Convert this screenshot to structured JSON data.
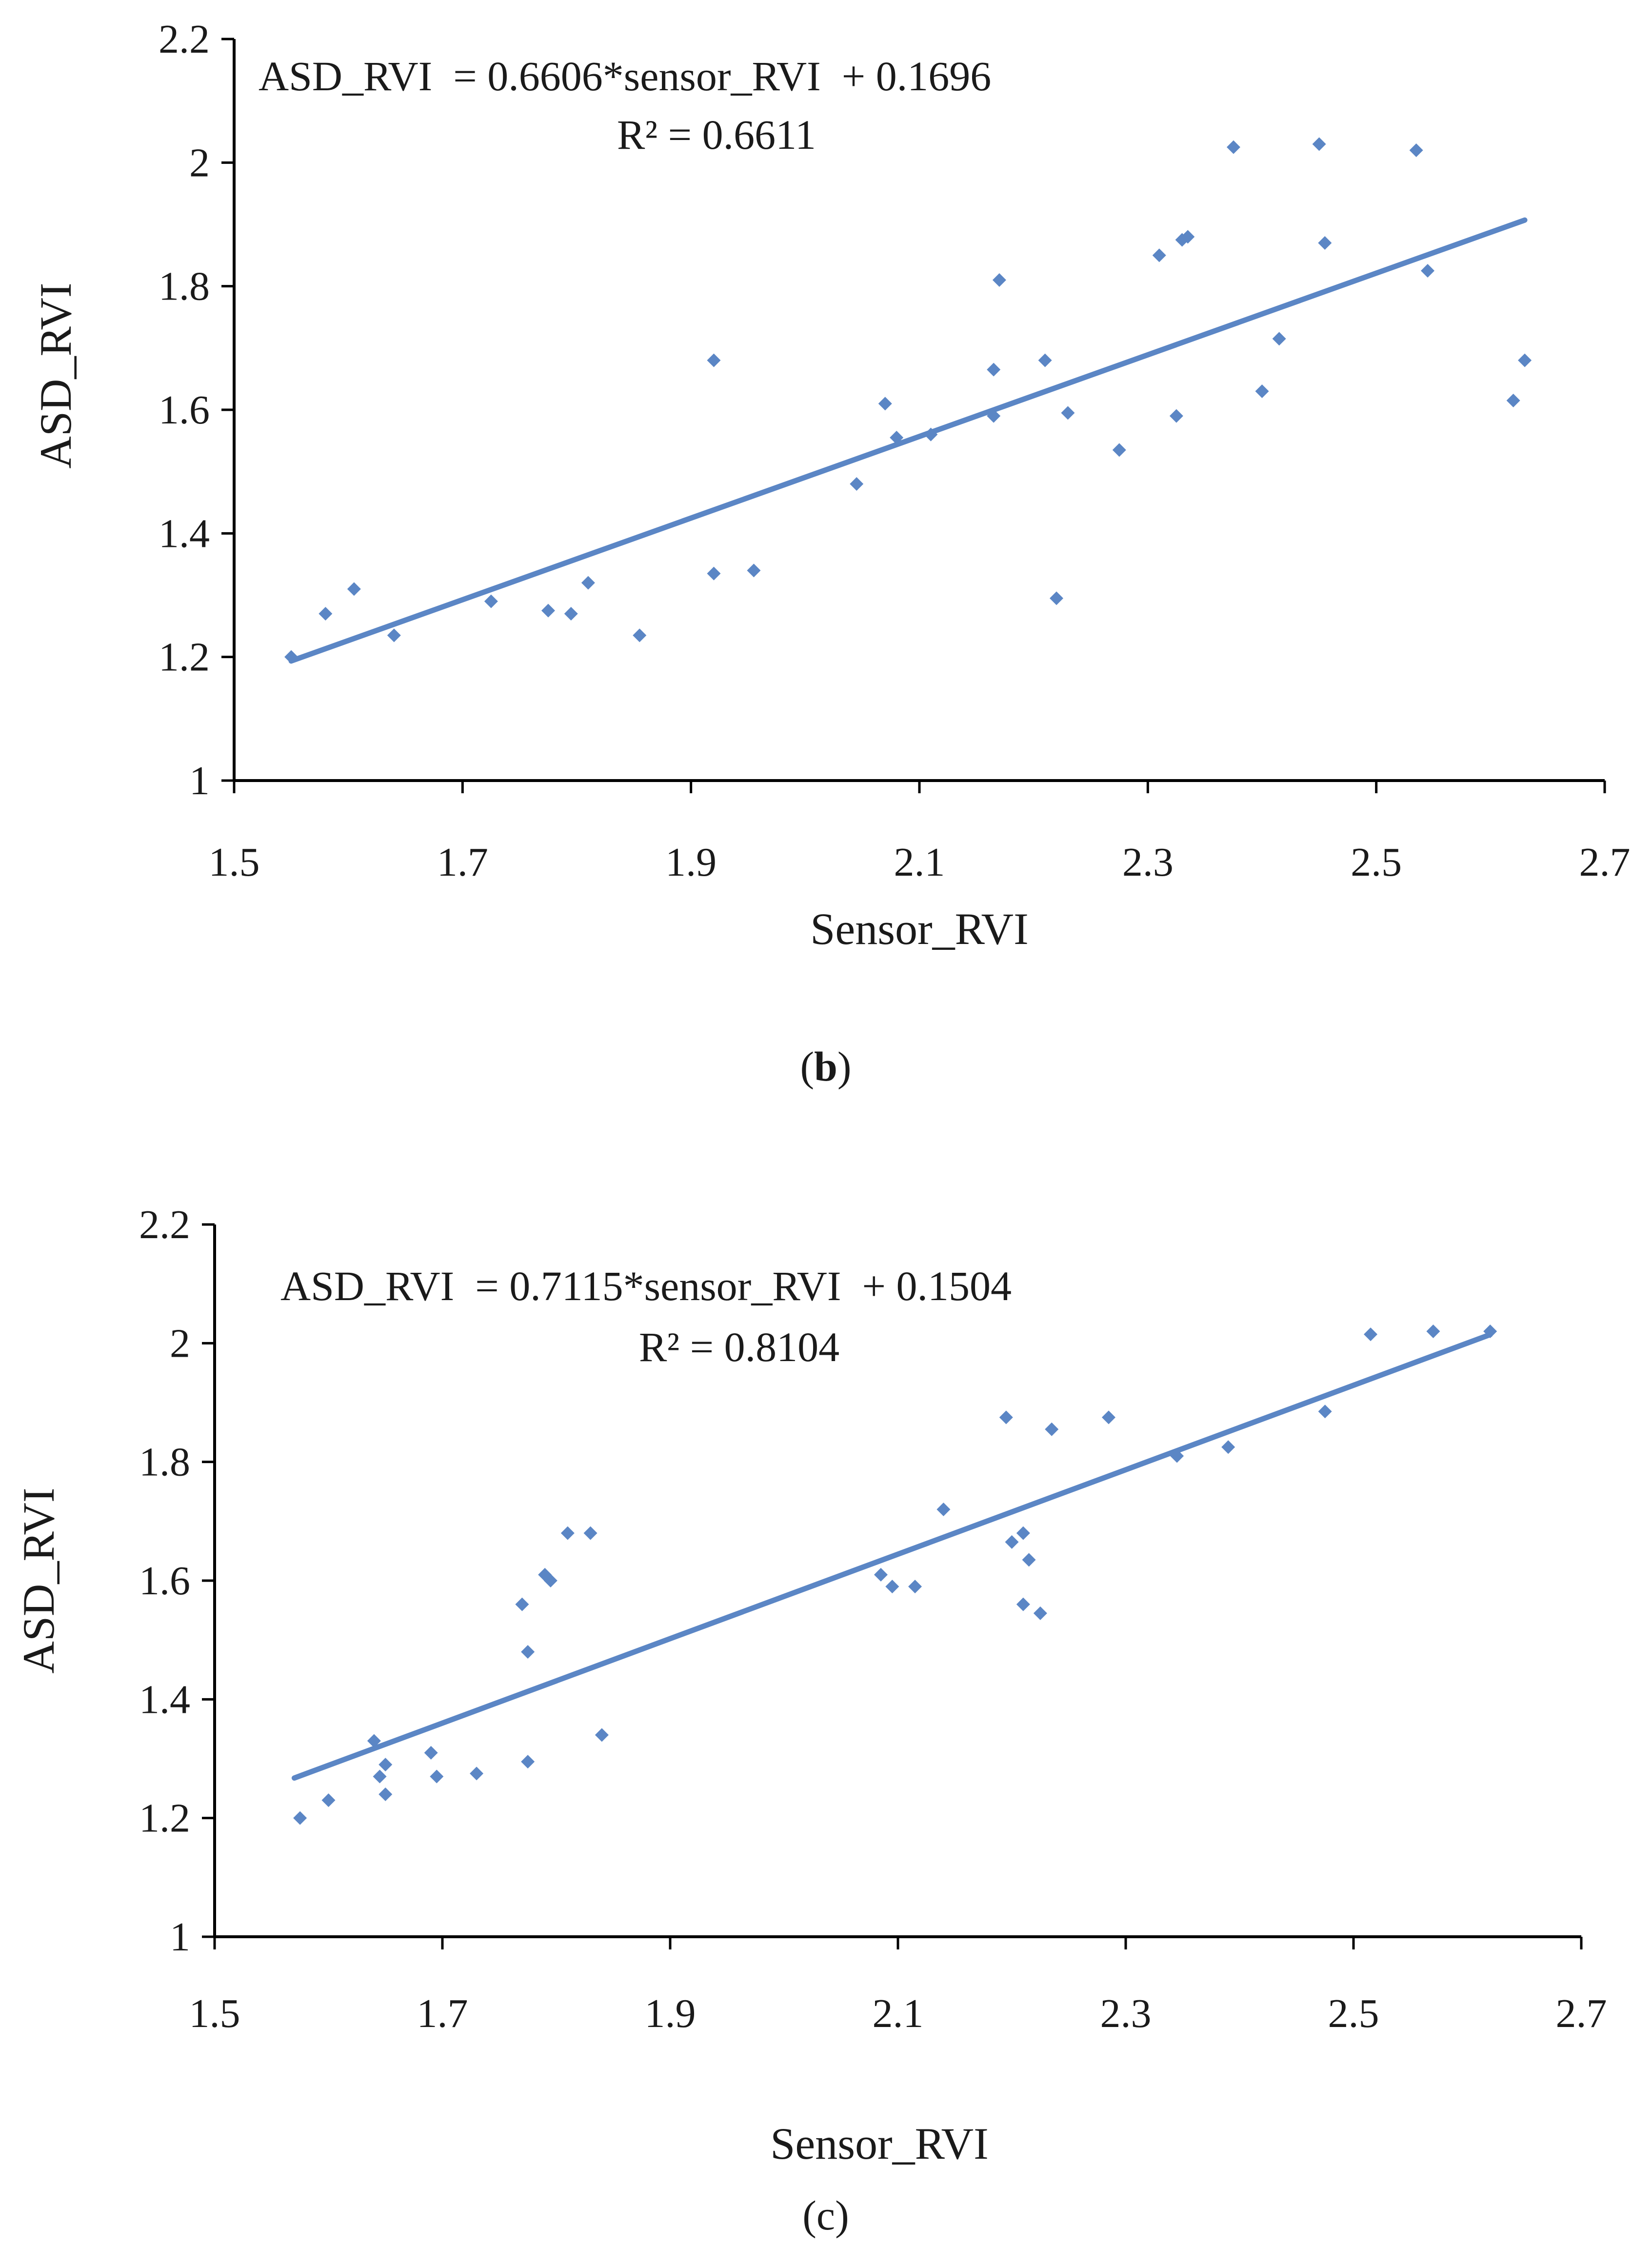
{
  "chart_data": [
    {
      "type": "scatter",
      "panel_label": "(b)",
      "panel_letter": "b",
      "xlabel": "Sensor_RVI",
      "ylabel": "ASD_RVI",
      "xlim": [
        1.5,
        2.7
      ],
      "ylim": [
        1,
        2.2
      ],
      "xticks": [
        1.5,
        1.7,
        1.9,
        2.1,
        2.3,
        2.5,
        2.7
      ],
      "yticks": [
        1,
        1.2,
        1.4,
        1.6,
        1.8,
        2,
        2.2
      ],
      "xtick_labels": [
        "1.5",
        "1.7",
        "1.9",
        "2.1",
        "2.3",
        "2.5",
        "2.7"
      ],
      "ytick_labels": [
        "1",
        "1.2",
        "1.4",
        "1.6",
        "1.8",
        "2",
        "2.2"
      ],
      "grid": false,
      "equation": "ASD_RVI  = 0.6606*sensor_RVI  + 0.1696",
      "r_squared_text": "R² = 0.6611",
      "trendline": {
        "slope": 0.6606,
        "intercept": 0.1696,
        "x_range": [
          1.55,
          2.63
        ]
      },
      "color": "#5b86c5",
      "points": [
        [
          1.55,
          1.2
        ],
        [
          1.58,
          1.27
        ],
        [
          1.605,
          1.31
        ],
        [
          1.64,
          1.235
        ],
        [
          1.725,
          1.29
        ],
        [
          1.775,
          1.275
        ],
        [
          1.795,
          1.27
        ],
        [
          1.81,
          1.32
        ],
        [
          1.855,
          1.235
        ],
        [
          1.92,
          1.335
        ],
        [
          1.92,
          1.68
        ],
        [
          1.955,
          1.34
        ],
        [
          2.045,
          1.48
        ],
        [
          2.07,
          1.61
        ],
        [
          2.08,
          1.555
        ],
        [
          2.11,
          1.56
        ],
        [
          2.165,
          1.665
        ],
        [
          2.165,
          1.59
        ],
        [
          2.17,
          1.81
        ],
        [
          2.21,
          1.68
        ],
        [
          2.22,
          1.295
        ],
        [
          2.23,
          1.595
        ],
        [
          2.275,
          1.535
        ],
        [
          2.31,
          1.85
        ],
        [
          2.325,
          1.59
        ],
        [
          2.33,
          1.875
        ],
        [
          2.335,
          1.88
        ],
        [
          2.375,
          2.025
        ],
        [
          2.4,
          1.63
        ],
        [
          2.415,
          1.715
        ],
        [
          2.45,
          2.03
        ],
        [
          2.455,
          1.87
        ],
        [
          2.535,
          2.02
        ],
        [
          2.545,
          1.825
        ],
        [
          2.62,
          1.615
        ],
        [
          2.63,
          1.68
        ]
      ]
    },
    {
      "type": "scatter",
      "panel_label": "(c)",
      "panel_letter": "c",
      "xlabel": "Sensor_RVI",
      "ylabel": "ASD_RVI",
      "xlim": [
        1.5,
        2.7
      ],
      "ylim": [
        1,
        2.2
      ],
      "xticks": [
        1.5,
        1.7,
        1.9,
        2.1,
        2.3,
        2.5,
        2.7
      ],
      "yticks": [
        1,
        1.2,
        1.4,
        1.6,
        1.8,
        2,
        2.2
      ],
      "xtick_labels": [
        "1.5",
        "1.7",
        "1.9",
        "2.1",
        "2.3",
        "2.5",
        "2.7"
      ],
      "ytick_labels": [
        "1",
        "1.2",
        "1.4",
        "1.6",
        "1.8",
        "2",
        "2.2"
      ],
      "grid": false,
      "equation": "ASD_RVI  = 0.7115*sensor_RVI  + 0.1504",
      "r_squared_text": "R² = 0.8104",
      "trendline": {
        "slope": 0.7115,
        "intercept": 0.1504,
        "x_range": [
          1.57,
          2.62
        ]
      },
      "color": "#5b86c5",
      "points": [
        [
          1.575,
          1.2
        ],
        [
          1.6,
          1.23
        ],
        [
          1.64,
          1.33
        ],
        [
          1.645,
          1.27
        ],
        [
          1.65,
          1.29
        ],
        [
          1.65,
          1.24
        ],
        [
          1.69,
          1.31
        ],
        [
          1.695,
          1.27
        ],
        [
          1.73,
          1.275
        ],
        [
          1.77,
          1.56
        ],
        [
          1.775,
          1.48
        ],
        [
          1.775,
          1.295
        ],
        [
          1.79,
          1.61
        ],
        [
          1.795,
          1.6
        ],
        [
          1.81,
          1.68
        ],
        [
          1.83,
          1.68
        ],
        [
          1.84,
          1.34
        ],
        [
          2.085,
          1.61
        ],
        [
          2.095,
          1.59
        ],
        [
          2.115,
          1.59
        ],
        [
          2.14,
          1.72
        ],
        [
          2.195,
          1.875
        ],
        [
          2.2,
          1.665
        ],
        [
          2.21,
          1.68
        ],
        [
          2.21,
          1.56
        ],
        [
          2.215,
          1.635
        ],
        [
          2.225,
          1.545
        ],
        [
          2.235,
          1.855
        ],
        [
          2.285,
          1.875
        ],
        [
          2.345,
          1.81
        ],
        [
          2.39,
          1.825
        ],
        [
          2.475,
          1.885
        ],
        [
          2.515,
          2.015
        ],
        [
          2.57,
          2.02
        ],
        [
          2.62,
          2.02
        ]
      ]
    }
  ]
}
